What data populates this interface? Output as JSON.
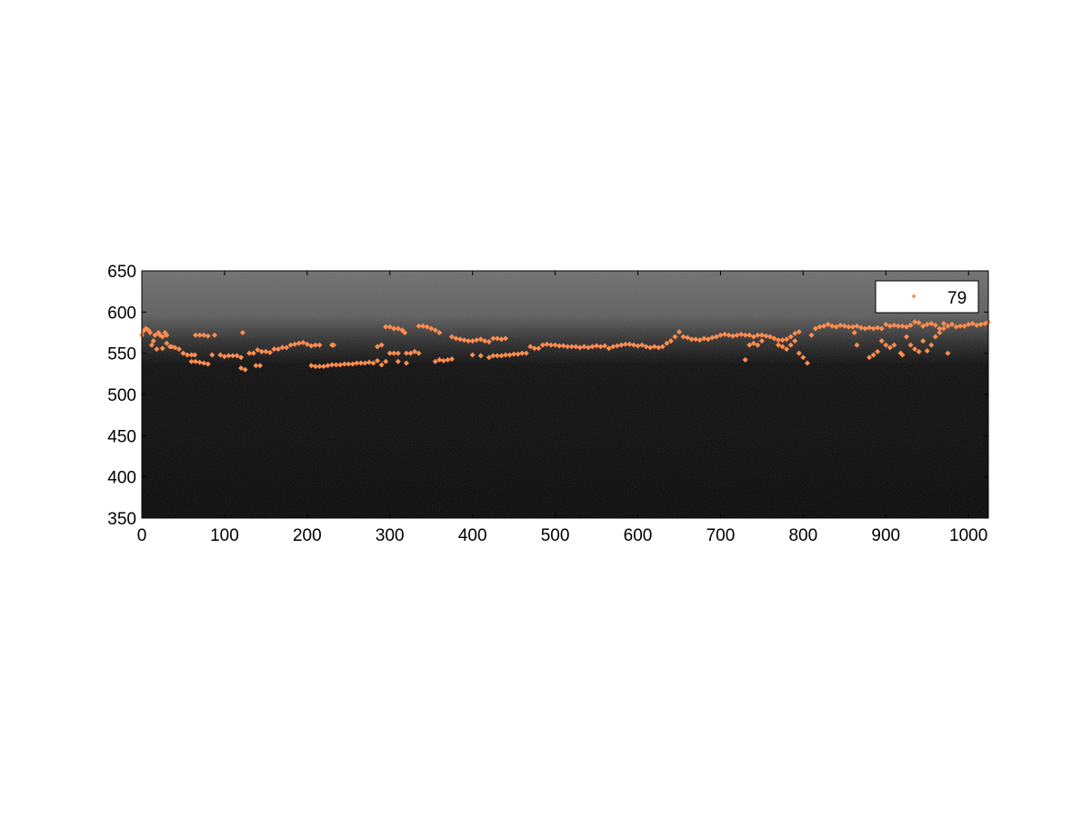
{
  "chart_data": {
    "type": "scatter",
    "title": "",
    "xlabel": "",
    "ylabel": "",
    "xlim": [
      0,
      1024
    ],
    "ylim": [
      350,
      650
    ],
    "xticks": [
      0,
      100,
      200,
      300,
      400,
      500,
      600,
      700,
      800,
      900,
      1000
    ],
    "yticks": [
      350,
      400,
      450,
      500,
      550,
      600,
      650
    ],
    "grid": false,
    "legend_position": "top-right",
    "background": "grayscale image: gray above y≈560, near-black below",
    "series": [
      {
        "name": "79",
        "color": "#ff8c50",
        "marker": "diamond",
        "points": [
          [
            0,
            572
          ],
          [
            2,
            577
          ],
          [
            5,
            580
          ],
          [
            8,
            578
          ],
          [
            10,
            575
          ],
          [
            12,
            560
          ],
          [
            14,
            565
          ],
          [
            16,
            572
          ],
          [
            20,
            575
          ],
          [
            22,
            572
          ],
          [
            25,
            570
          ],
          [
            28,
            575
          ],
          [
            30,
            572
          ],
          [
            18,
            555
          ],
          [
            25,
            556
          ],
          [
            30,
            562
          ],
          [
            34,
            558
          ],
          [
            36,
            558
          ],
          [
            40,
            557
          ],
          [
            45,
            555
          ],
          [
            50,
            550
          ],
          [
            55,
            548
          ],
          [
            60,
            548
          ],
          [
            64,
            548
          ],
          [
            65,
            572
          ],
          [
            70,
            572
          ],
          [
            75,
            572
          ],
          [
            80,
            571
          ],
          [
            85,
            548
          ],
          [
            88,
            572
          ],
          [
            95,
            548
          ],
          [
            100,
            546
          ],
          [
            105,
            547
          ],
          [
            110,
            547
          ],
          [
            115,
            547
          ],
          [
            120,
            545
          ],
          [
            60,
            540
          ],
          [
            65,
            540
          ],
          [
            70,
            539
          ],
          [
            75,
            538
          ],
          [
            80,
            537
          ],
          [
            122,
            575
          ],
          [
            120,
            532
          ],
          [
            125,
            530
          ],
          [
            130,
            550
          ],
          [
            135,
            550
          ],
          [
            140,
            554
          ],
          [
            138,
            535
          ],
          [
            143,
            535
          ],
          [
            145,
            552
          ],
          [
            150,
            552
          ],
          [
            155,
            551
          ],
          [
            160,
            555
          ],
          [
            165,
            555
          ],
          [
            170,
            557
          ],
          [
            175,
            557
          ],
          [
            180,
            560
          ],
          [
            185,
            561
          ],
          [
            190,
            562
          ],
          [
            195,
            563
          ],
          [
            200,
            561
          ],
          [
            205,
            559
          ],
          [
            210,
            560
          ],
          [
            215,
            560
          ],
          [
            205,
            535
          ],
          [
            210,
            534
          ],
          [
            215,
            534
          ],
          [
            220,
            534
          ],
          [
            225,
            535
          ],
          [
            230,
            536
          ],
          [
            235,
            536
          ],
          [
            240,
            536
          ],
          [
            245,
            537
          ],
          [
            250,
            537
          ],
          [
            255,
            537
          ],
          [
            260,
            538
          ],
          [
            265,
            538
          ],
          [
            270,
            538
          ],
          [
            275,
            539
          ],
          [
            280,
            538
          ],
          [
            285,
            541
          ],
          [
            290,
            536
          ],
          [
            295,
            540
          ],
          [
            230,
            560
          ],
          [
            232,
            560
          ],
          [
            285,
            558
          ],
          [
            290,
            560
          ],
          [
            295,
            582
          ],
          [
            300,
            582
          ],
          [
            305,
            580
          ],
          [
            310,
            580
          ],
          [
            315,
            578
          ],
          [
            318,
            575
          ],
          [
            300,
            550
          ],
          [
            305,
            550
          ],
          [
            310,
            550
          ],
          [
            320,
            550
          ],
          [
            325,
            550
          ],
          [
            330,
            552
          ],
          [
            335,
            550
          ],
          [
            310,
            540
          ],
          [
            320,
            538
          ],
          [
            335,
            583
          ],
          [
            340,
            583
          ],
          [
            345,
            582
          ],
          [
            350,
            580
          ],
          [
            355,
            578
          ],
          [
            360,
            575
          ],
          [
            355,
            540
          ],
          [
            360,
            542
          ],
          [
            365,
            541
          ],
          [
            370,
            542
          ],
          [
            375,
            543
          ],
          [
            375,
            570
          ],
          [
            380,
            568
          ],
          [
            385,
            567
          ],
          [
            390,
            566
          ],
          [
            395,
            565
          ],
          [
            400,
            565
          ],
          [
            405,
            566
          ],
          [
            410,
            567
          ],
          [
            415,
            565
          ],
          [
            420,
            564
          ],
          [
            425,
            568
          ],
          [
            430,
            568
          ],
          [
            435,
            567
          ],
          [
            440,
            568
          ],
          [
            400,
            548
          ],
          [
            410,
            547
          ],
          [
            420,
            545
          ],
          [
            425,
            547
          ],
          [
            430,
            547
          ],
          [
            435,
            547
          ],
          [
            440,
            548
          ],
          [
            445,
            548
          ],
          [
            450,
            549
          ],
          [
            455,
            549
          ],
          [
            460,
            550
          ],
          [
            465,
            550
          ],
          [
            470,
            558
          ],
          [
            475,
            556
          ],
          [
            480,
            556
          ],
          [
            485,
            560
          ],
          [
            490,
            561
          ],
          [
            495,
            560
          ],
          [
            500,
            560
          ],
          [
            505,
            559
          ],
          [
            510,
            559
          ],
          [
            515,
            558
          ],
          [
            520,
            558
          ],
          [
            525,
            558
          ],
          [
            530,
            557
          ],
          [
            535,
            558
          ],
          [
            540,
            557
          ],
          [
            545,
            558
          ],
          [
            550,
            559
          ],
          [
            555,
            558
          ],
          [
            560,
            559
          ],
          [
            565,
            556
          ],
          [
            570,
            558
          ],
          [
            575,
            559
          ],
          [
            580,
            560
          ],
          [
            585,
            561
          ],
          [
            590,
            561
          ],
          [
            595,
            560
          ],
          [
            600,
            559
          ],
          [
            605,
            560
          ],
          [
            610,
            558
          ],
          [
            615,
            557
          ],
          [
            620,
            558
          ],
          [
            625,
            557
          ],
          [
            630,
            558
          ],
          [
            635,
            562
          ],
          [
            640,
            565
          ],
          [
            645,
            570
          ],
          [
            650,
            576
          ],
          [
            655,
            570
          ],
          [
            660,
            569
          ],
          [
            665,
            567
          ],
          [
            670,
            567
          ],
          [
            675,
            566
          ],
          [
            680,
            568
          ],
          [
            685,
            567
          ],
          [
            690,
            569
          ],
          [
            695,
            570
          ],
          [
            700,
            572
          ],
          [
            705,
            573
          ],
          [
            710,
            572
          ],
          [
            715,
            571
          ],
          [
            720,
            572
          ],
          [
            725,
            573
          ],
          [
            730,
            572
          ],
          [
            735,
            572
          ],
          [
            740,
            570
          ],
          [
            745,
            572
          ],
          [
            750,
            572
          ],
          [
            755,
            571
          ],
          [
            760,
            570
          ],
          [
            765,
            568
          ],
          [
            770,
            566
          ],
          [
            775,
            566
          ],
          [
            780,
            567
          ],
          [
            785,
            570
          ],
          [
            790,
            574
          ],
          [
            795,
            576
          ],
          [
            730,
            542
          ],
          [
            735,
            560
          ],
          [
            740,
            562
          ],
          [
            745,
            560
          ],
          [
            750,
            565
          ],
          [
            770,
            560
          ],
          [
            775,
            558
          ],
          [
            780,
            555
          ],
          [
            785,
            560
          ],
          [
            790,
            565
          ],
          [
            795,
            550
          ],
          [
            800,
            545
          ],
          [
            805,
            538
          ],
          [
            810,
            572
          ],
          [
            815,
            580
          ],
          [
            820,
            582
          ],
          [
            825,
            583
          ],
          [
            830,
            585
          ],
          [
            835,
            583
          ],
          [
            840,
            582
          ],
          [
            845,
            584
          ],
          [
            850,
            583
          ],
          [
            855,
            582
          ],
          [
            860,
            582
          ],
          [
            865,
            583
          ],
          [
            870,
            581
          ],
          [
            875,
            580
          ],
          [
            880,
            581
          ],
          [
            885,
            580
          ],
          [
            890,
            581
          ],
          [
            895,
            580
          ],
          [
            900,
            585
          ],
          [
            905,
            583
          ],
          [
            910,
            584
          ],
          [
            915,
            583
          ],
          [
            920,
            583
          ],
          [
            925,
            582
          ],
          [
            930,
            584
          ],
          [
            935,
            588
          ],
          [
            940,
            587
          ],
          [
            945,
            583
          ],
          [
            950,
            585
          ],
          [
            955,
            586
          ],
          [
            960,
            584
          ],
          [
            965,
            580
          ],
          [
            970,
            586
          ],
          [
            975,
            583
          ],
          [
            980,
            585
          ],
          [
            985,
            582
          ],
          [
            990,
            583
          ],
          [
            995,
            583
          ],
          [
            1000,
            585
          ],
          [
            1005,
            586
          ],
          [
            1010,
            584
          ],
          [
            1015,
            585
          ],
          [
            1020,
            586
          ],
          [
            1024,
            588
          ],
          [
            880,
            545
          ],
          [
            885,
            548
          ],
          [
            890,
            552
          ],
          [
            895,
            565
          ],
          [
            900,
            560
          ],
          [
            905,
            557
          ],
          [
            910,
            560
          ],
          [
            918,
            550
          ],
          [
            920,
            548
          ],
          [
            925,
            570
          ],
          [
            930,
            560
          ],
          [
            935,
            555
          ],
          [
            940,
            552
          ],
          [
            945,
            565
          ],
          [
            950,
            553
          ],
          [
            955,
            560
          ],
          [
            960,
            570
          ],
          [
            965,
            575
          ],
          [
            970,
            580
          ],
          [
            975,
            550
          ],
          [
            865,
            560
          ],
          [
            862,
            575
          ]
        ]
      }
    ]
  }
}
